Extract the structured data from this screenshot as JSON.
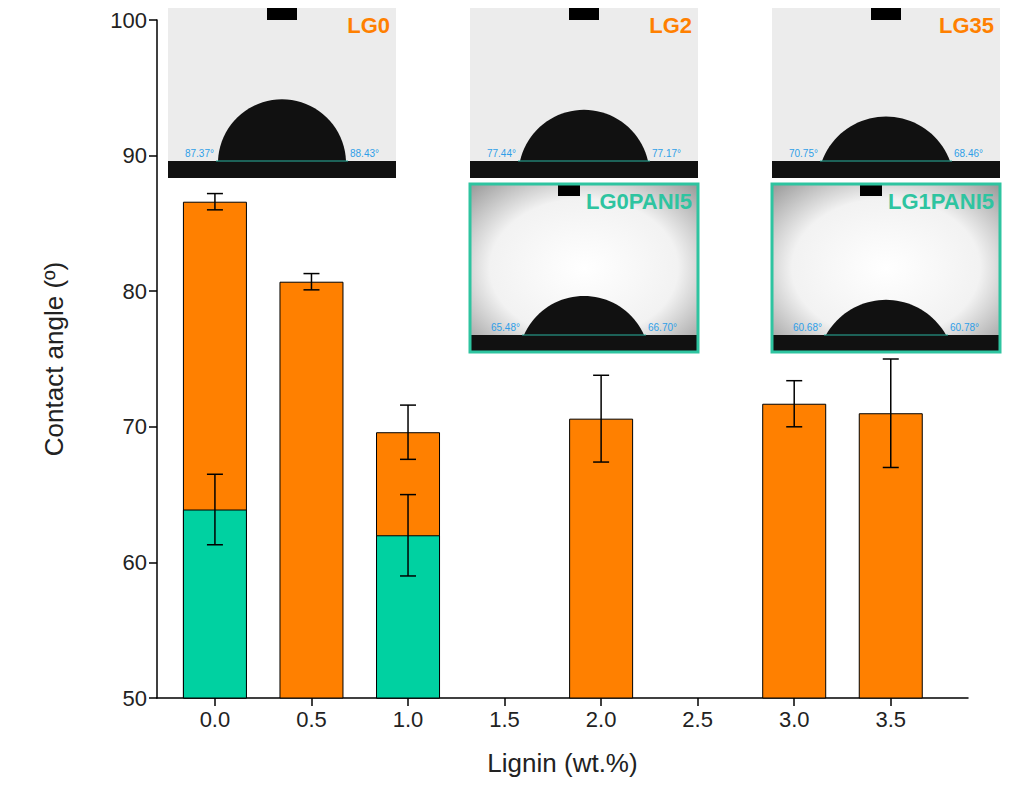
{
  "chart_data": {
    "type": "bar",
    "x_label": "Lignin (wt.%)",
    "y_label": "Contact angle (º)",
    "x": [
      0,
      0.5,
      1,
      2,
      3,
      3.5
    ],
    "series": [
      {
        "color": "#ff8000",
        "values": [
          86.6,
          80.7,
          69.6,
          70.6,
          71.7,
          71.0
        ],
        "errors": [
          0.6,
          0.6,
          2.0,
          3.2,
          1.7,
          4.0
        ]
      },
      {
        "color": "#00d1a1",
        "values": [
          63.9,
          null,
          62.0,
          null,
          null,
          null
        ],
        "errors": [
          2.6,
          null,
          3.0,
          null,
          null,
          null
        ]
      }
    ],
    "xlim": [
      -0.3,
      3.9
    ],
    "xticks": [
      {
        "value": 0,
        "label": "0.0"
      },
      0.5,
      {
        "value": 1,
        "label": "1.0"
      },
      1.5,
      {
        "value": 2,
        "label": "2.0"
      },
      2.5,
      {
        "value": 3,
        "label": "3.0"
      },
      3.5
    ],
    "ylim": [
      50,
      100
    ],
    "yticks": [
      50,
      60,
      70,
      80,
      90,
      100
    ],
    "grid": false,
    "annotations": [
      {
        "text": "LG0",
        "angles": [
          "87.37°",
          "88.43°"
        ],
        "color": "#ff8000"
      },
      {
        "text": "LG2",
        "angles": [
          "77.44°",
          "77.17°"
        ],
        "color": "#ff8000"
      },
      {
        "text": "LG35",
        "angles": [
          "70.75°",
          "68.46°"
        ],
        "color": "#ff8000"
      },
      {
        "text": "LG0PANI5",
        "angles": [
          "65.48°",
          "66.70°"
        ],
        "color": "#2ec4a0"
      },
      {
        "text": "LG1PANI5",
        "angles": [
          "60.68°",
          "60.78°"
        ],
        "color": "#2ec4a0"
      }
    ]
  }
}
